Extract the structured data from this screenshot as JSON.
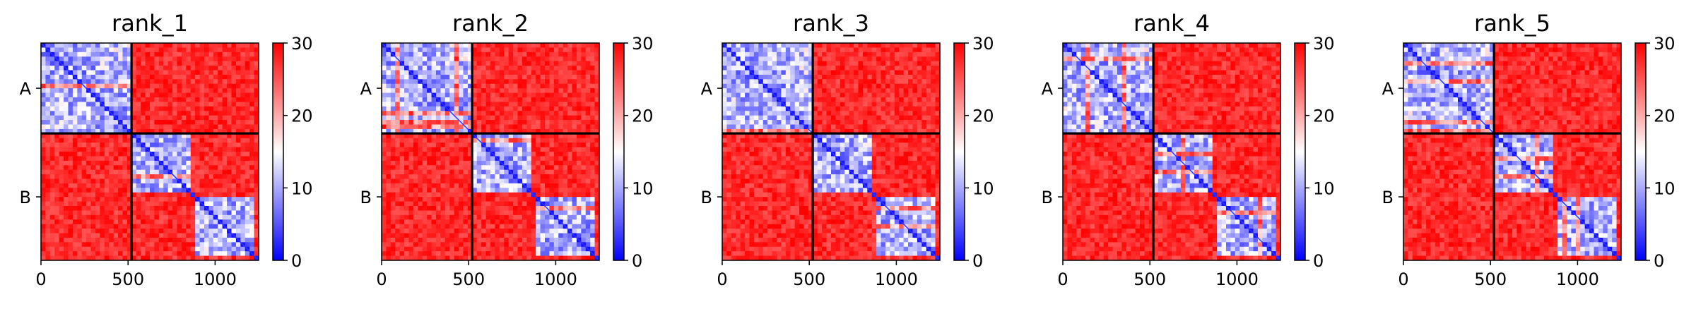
{
  "chart_data": [
    {
      "type": "heatmap",
      "title": "rank_1",
      "x_ticks": [
        "0",
        "500",
        "1000"
      ],
      "x_tick_values": [
        0,
        500,
        1000
      ],
      "xlim": [
        0,
        1250
      ],
      "chains": [
        {
          "label": "A",
          "start": 0,
          "end": 520
        },
        {
          "label": "B",
          "start": 520,
          "end": 1250
        }
      ],
      "colorbar": {
        "range": [
          0,
          30
        ],
        "ticks": [
          "0",
          "10",
          "20",
          "30"
        ],
        "tick_values": [
          0,
          10,
          20,
          30
        ],
        "colormap": "bwr"
      },
      "low_error_blocks": [
        [
          0,
          520
        ],
        [
          520,
          850
        ],
        [
          880,
          1225
        ]
      ]
    },
    {
      "type": "heatmap",
      "title": "rank_2",
      "x_ticks": [
        "0",
        "500",
        "1000"
      ],
      "x_tick_values": [
        0,
        500,
        1000
      ],
      "xlim": [
        0,
        1250
      ],
      "chains": [
        {
          "label": "A",
          "start": 0,
          "end": 520
        },
        {
          "label": "B",
          "start": 520,
          "end": 1250
        }
      ],
      "colorbar": {
        "range": [
          0,
          30
        ],
        "ticks": [
          "0",
          "10",
          "20",
          "30"
        ],
        "tick_values": [
          0,
          10,
          20,
          30
        ],
        "colormap": "bwr"
      },
      "low_error_blocks": [
        [
          0,
          520
        ],
        [
          520,
          850
        ],
        [
          880,
          1225
        ]
      ]
    },
    {
      "type": "heatmap",
      "title": "rank_3",
      "x_ticks": [
        "0",
        "500",
        "1000"
      ],
      "x_tick_values": [
        0,
        500,
        1000
      ],
      "xlim": [
        0,
        1250
      ],
      "chains": [
        {
          "label": "A",
          "start": 0,
          "end": 520
        },
        {
          "label": "B",
          "start": 520,
          "end": 1250
        }
      ],
      "colorbar": {
        "range": [
          0,
          30
        ],
        "ticks": [
          "0",
          "10",
          "20",
          "30"
        ],
        "tick_values": [
          0,
          10,
          20,
          30
        ],
        "colormap": "bwr"
      },
      "low_error_blocks": [
        [
          0,
          520
        ],
        [
          520,
          850
        ],
        [
          880,
          1225
        ]
      ]
    },
    {
      "type": "heatmap",
      "title": "rank_4",
      "x_ticks": [
        "0",
        "500",
        "1000"
      ],
      "x_tick_values": [
        0,
        500,
        1000
      ],
      "xlim": [
        0,
        1250
      ],
      "chains": [
        {
          "label": "A",
          "start": 0,
          "end": 520
        },
        {
          "label": "B",
          "start": 520,
          "end": 1250
        }
      ],
      "colorbar": {
        "range": [
          0,
          30
        ],
        "ticks": [
          "0",
          "10",
          "20",
          "30"
        ],
        "tick_values": [
          0,
          10,
          20,
          30
        ],
        "colormap": "bwr"
      },
      "low_error_blocks": [
        [
          0,
          520
        ],
        [
          520,
          850
        ],
        [
          880,
          1225
        ]
      ]
    },
    {
      "type": "heatmap",
      "title": "rank_5",
      "x_ticks": [
        "0",
        "500",
        "1000"
      ],
      "x_tick_values": [
        0,
        500,
        1000
      ],
      "xlim": [
        0,
        1250
      ],
      "chains": [
        {
          "label": "A",
          "start": 0,
          "end": 520
        },
        {
          "label": "B",
          "start": 520,
          "end": 1250
        }
      ],
      "colorbar": {
        "range": [
          0,
          30
        ],
        "ticks": [
          "0",
          "10",
          "20",
          "30"
        ],
        "tick_values": [
          0,
          10,
          20,
          30
        ],
        "colormap": "bwr"
      },
      "low_error_blocks": [
        [
          0,
          520
        ],
        [
          520,
          850
        ],
        [
          880,
          1225
        ]
      ]
    }
  ],
  "colors": {
    "low": "#0000ff",
    "mid": "#ffffff",
    "high": "#ff0000",
    "line": "#000000"
  }
}
